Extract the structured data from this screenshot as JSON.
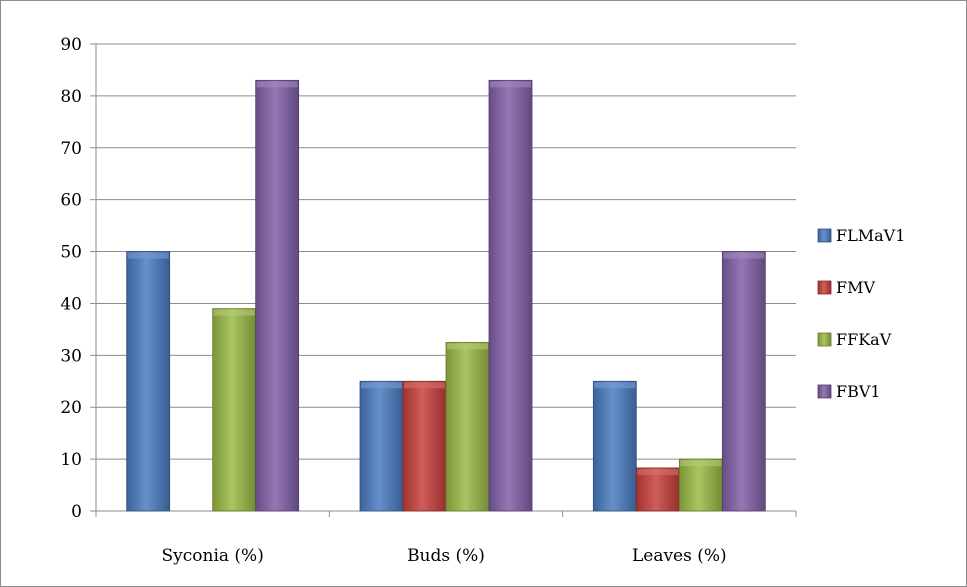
{
  "chart_data": {
    "type": "bar",
    "categories": [
      "Syconia (%)",
      "Buds (%)",
      "Leaves (%)"
    ],
    "series": [
      {
        "name": "FLMaV1",
        "values": [
          50,
          25,
          25
        ],
        "color": "#4a7cc2"
      },
      {
        "name": "FMV",
        "values": [
          0,
          25,
          8.3
        ],
        "color": "#c8403c"
      },
      {
        "name": "FFKaV",
        "values": [
          39,
          32.5,
          10
        ],
        "color": "#9bbb46"
      },
      {
        "name": "FBV1",
        "values": [
          83,
          83,
          50
        ],
        "color": "#8160a8"
      }
    ],
    "yticks": [
      "0",
      "10",
      "20",
      "30",
      "40",
      "50",
      "60",
      "70",
      "80",
      "90"
    ],
    "ylim": [
      0,
      90
    ],
    "grid": true,
    "legend_position": "right"
  }
}
